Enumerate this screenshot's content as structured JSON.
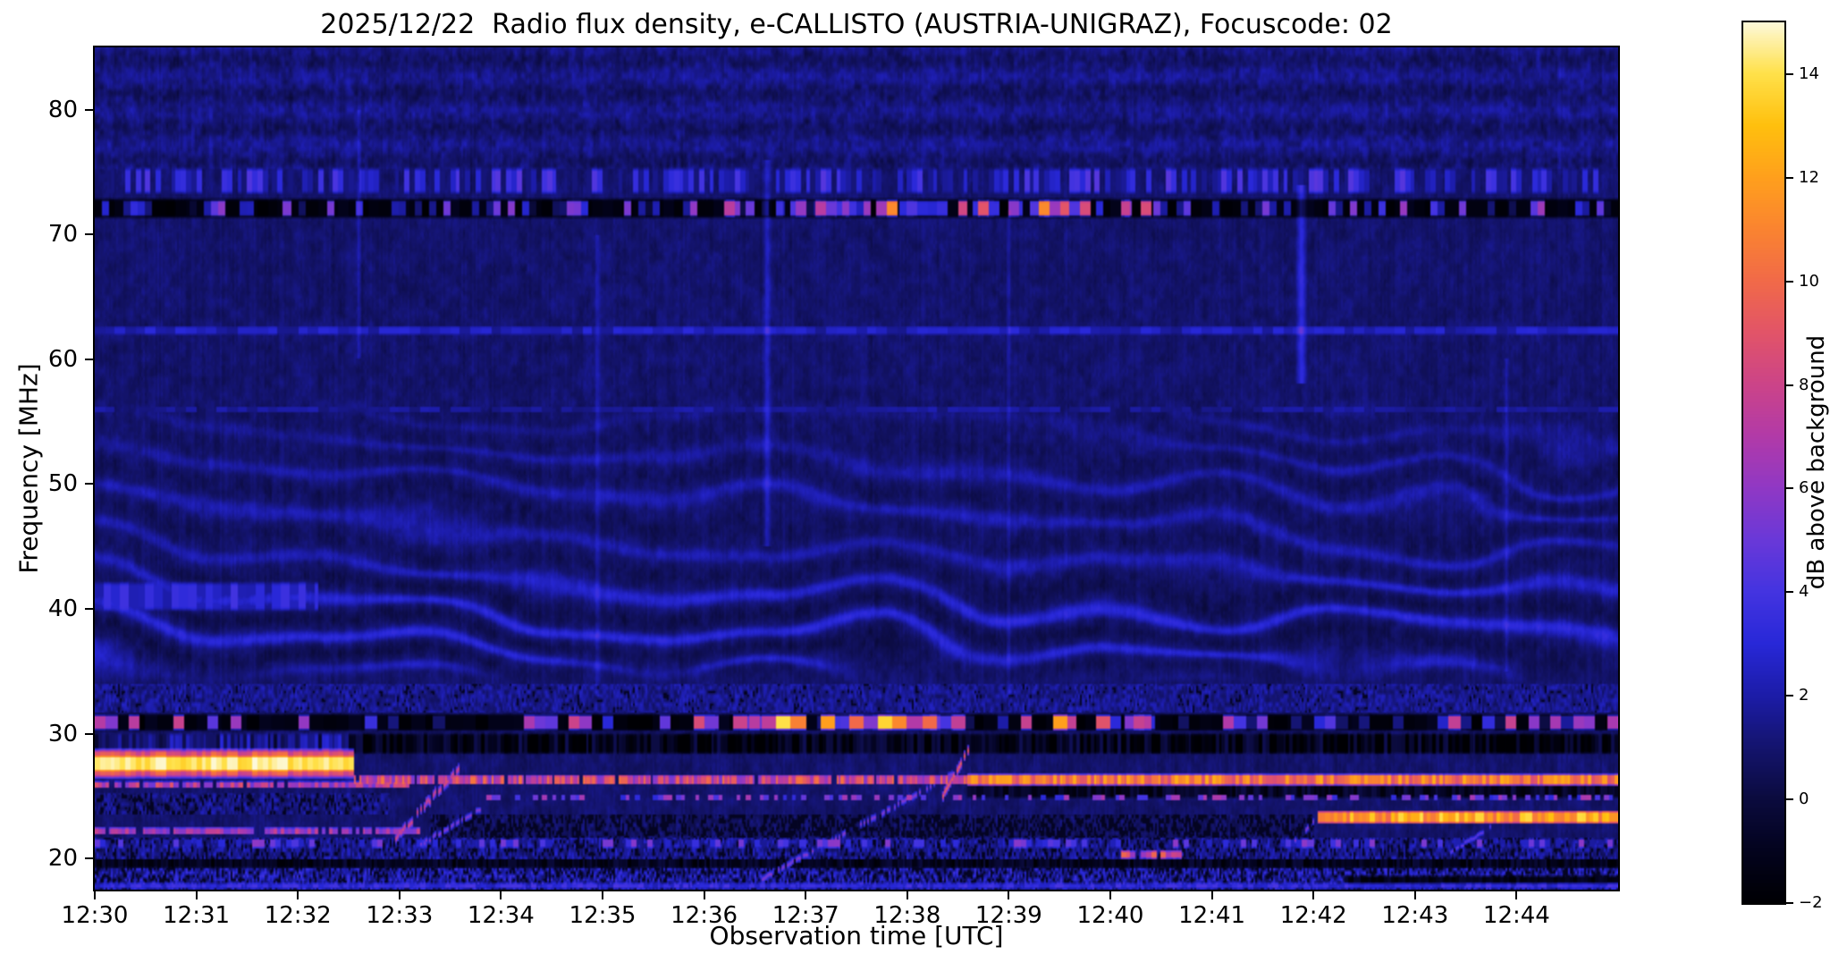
{
  "title": "2025/12/22  Radio flux density, e-CALLISTO (AUSTRIA-UNIGRAZ), Focuscode: 02",
  "chart_data": {
    "type": "heatmap",
    "title": "2025/12/22  Radio flux density, e-CALLISTO (AUSTRIA-UNIGRAZ), Focuscode: 02",
    "xlabel": "Observation time [UTC]",
    "ylabel": "Frequency [MHz]",
    "colorbar_label": "dB above background",
    "x_start": "12:30",
    "x_end": "12:45",
    "x_minutes_span": 15,
    "x_tick_labels": [
      "12:30",
      "12:31",
      "12:32",
      "12:33",
      "12:34",
      "12:35",
      "12:36",
      "12:37",
      "12:38",
      "12:39",
      "12:40",
      "12:41",
      "12:42",
      "12:43",
      "12:44"
    ],
    "y_ticks_mhz": [
      20,
      30,
      40,
      50,
      60,
      70,
      80
    ],
    "freq_range_mhz": [
      17.5,
      85.0
    ],
    "value_range_db": [
      -2,
      15
    ],
    "colorbar_tick_values": [
      -2,
      0,
      2,
      4,
      6,
      8,
      10,
      12,
      14
    ],
    "colorbar_tick_labels": [
      "−2",
      "0",
      "2",
      "4",
      "6",
      "8",
      "10",
      "12",
      "14"
    ],
    "grid": false,
    "legend_position": "right-colorbar",
    "colormap_stops": [
      {
        "v": -2,
        "color": "#000003"
      },
      {
        "v": -1,
        "color": "#03031e"
      },
      {
        "v": 0,
        "color": "#0b0b3e"
      },
      {
        "v": 1,
        "color": "#14146e"
      },
      {
        "v": 2,
        "color": "#1c1ca8"
      },
      {
        "v": 3,
        "color": "#2828d8"
      },
      {
        "v": 4,
        "color": "#4434e0"
      },
      {
        "v": 5,
        "color": "#6a38d8"
      },
      {
        "v": 6,
        "color": "#9038c4"
      },
      {
        "v": 7,
        "color": "#b23aa8"
      },
      {
        "v": 8,
        "color": "#cc4488"
      },
      {
        "v": 9,
        "color": "#e25468"
      },
      {
        "v": 10,
        "color": "#f16a48"
      },
      {
        "v": 11,
        "color": "#fa8430"
      },
      {
        "v": 12,
        "color": "#ffa01c"
      },
      {
        "v": 13,
        "color": "#ffc00e"
      },
      {
        "v": 14,
        "color": "#ffe14a"
      },
      {
        "v": 15,
        "color": "#fdf9dc"
      }
    ],
    "background": {
      "level": 0.35,
      "noise1": {
        "amp": 0.75,
        "sx": 14,
        "sy": 1.1
      },
      "noise2": {
        "amp": 0.45,
        "sx": 60,
        "sy": 3.2
      },
      "column_noise": {
        "amp": 0.5,
        "sx": 120
      }
    },
    "features": {
      "ripples": {
        "f0": 34,
        "f1": 57,
        "kf": 2.0,
        "warp": 1.4,
        "wsx": 0.9,
        "wsy": 0.18,
        "drift": 1.1,
        "base_amp": 0.3,
        "peaks": [
          {
            "f": 36.5,
            "a": 0.85,
            "w": 2.5
          },
          {
            "f": 40.2,
            "a": 1.25,
            "w": 3.5
          },
          {
            "f": 48.5,
            "a": 0.7,
            "w": 5.0
          }
        ]
      },
      "top_mottle": {
        "f0": 75.3,
        "f1": 85.0,
        "amp": 1.0,
        "sx": 28,
        "sy": 2.2,
        "row_amp": 0.35,
        "row_k": 2.3
      },
      "set_bands": [
        {
          "f": 30.9,
          "h": 1.5,
          "t0": 0,
          "t1": 15,
          "v": -1.5,
          "vr": 0.6,
          "seg": 8
        },
        {
          "f": 29.2,
          "h": 1.8,
          "t0": 2.5,
          "t1": 15,
          "v": -1.1,
          "vr": 1.6,
          "seg": 30
        },
        {
          "f": 29.2,
          "h": 1.8,
          "t0": 0,
          "t1": 2.5,
          "v": 1.2,
          "vr": 1.8,
          "seg": 30
        },
        {
          "f": 72.1,
          "h": 1.7,
          "t0": 0,
          "t1": 15,
          "v": -1.5,
          "vr": 0.5,
          "seg": 10
        },
        {
          "f": 19.6,
          "h": 0.8,
          "t0": 0,
          "t1": 15,
          "v": -1.0,
          "vr": 1.0,
          "seg": 40
        },
        {
          "f": 18.2,
          "h": 0.9,
          "t0": 12.3,
          "t1": 15,
          "v": -1.2,
          "vr": 0.8,
          "seg": 30
        },
        {
          "f": 25.4,
          "h": 1.2,
          "t0": 8.6,
          "t1": 15,
          "v": -0.8,
          "vr": 1.0,
          "seg": 35
        }
      ],
      "bright_bands": [
        {
          "f": 27.6,
          "h": 2.6,
          "t0": 0,
          "t1": 2.55,
          "v": 9.0,
          "vr": 1.5,
          "dash": 1,
          "seg": 20
        },
        {
          "f": 27.6,
          "h": 1.3,
          "t0": 0,
          "t1": 2.55,
          "v": 14.3,
          "vr": 0.8,
          "dash": 1,
          "seg": 20
        },
        {
          "f": 25.9,
          "h": 0.6,
          "t0": 0,
          "t1": 3.1,
          "v": 7.0,
          "vr": 2.0,
          "dash": 0.9,
          "seg": 30
        },
        {
          "f": 26.3,
          "h": 0.8,
          "t0": 2.55,
          "t1": 8.6,
          "v": 8.0,
          "vr": 2.5,
          "dash": 0.95,
          "seg": 40
        },
        {
          "f": 26.3,
          "h": 1.0,
          "t0": 8.6,
          "t1": 15,
          "v": 10.5,
          "vr": 2.0,
          "dash": 1,
          "seg": 30
        },
        {
          "f": 24.9,
          "h": 0.5,
          "t0": 3.2,
          "t1": 15,
          "v": 5.0,
          "vr": 2.0,
          "dash": 0.45,
          "seg": 22
        },
        {
          "f": 23.3,
          "h": 1.1,
          "t0": 12.05,
          "t1": 15,
          "v": 12.0,
          "vr": 2.0,
          "dash": 1,
          "seg": 25
        },
        {
          "f": 22.2,
          "h": 0.6,
          "t0": 0,
          "t1": 3.2,
          "v": 6.5,
          "vr": 1.5,
          "dash": 0.85,
          "seg": 30
        },
        {
          "f": 21.2,
          "h": 0.8,
          "t0": 0,
          "t1": 15,
          "v": 3.5,
          "vr": 2.5,
          "dash": 0.45,
          "seg": 18
        },
        {
          "f": 30.9,
          "h": 1.3,
          "t0": 0,
          "t1": 15,
          "v": 4.0,
          "vr": 4.0,
          "dash": 0.4,
          "seg": 9
        },
        {
          "f": 30.9,
          "h": 1.3,
          "t0": 5.9,
          "t1": 10.4,
          "v": 9.0,
          "vr": 5.0,
          "dash": 0.55,
          "seg": 7
        },
        {
          "f": 72.1,
          "h": 1.4,
          "t0": 0,
          "t1": 15,
          "v": 3.0,
          "vr": 3.5,
          "dash": 0.38,
          "seg": 14
        },
        {
          "f": 72.1,
          "h": 1.4,
          "t0": 6.1,
          "t1": 10.4,
          "v": 7.0,
          "vr": 5.0,
          "dash": 0.5,
          "seg": 10
        },
        {
          "f": 74.3,
          "h": 2.2,
          "t0": 0,
          "t1": 15,
          "v": 2.4,
          "vr": 2.2,
          "dash": 0.8,
          "seg": 20
        },
        {
          "f": 62.3,
          "h": 0.7,
          "t0": 0,
          "t1": 15,
          "v": 2.3,
          "vr": 0.8,
          "dash": 1,
          "seg": 10
        },
        {
          "f": 56.0,
          "h": 0.5,
          "t0": 0,
          "t1": 15,
          "v": 1.7,
          "vr": 0.5,
          "dash": 0.9,
          "seg": 10
        },
        {
          "f": 17.8,
          "h": 0.5,
          "t0": 0,
          "t1": 15,
          "v": 3.2,
          "vr": 1.0,
          "dash": 1,
          "seg": 20
        },
        {
          "f": 20.3,
          "h": 0.7,
          "t0": 10.1,
          "t1": 10.7,
          "v": 8.0,
          "vr": 2.0,
          "dash": 0.8,
          "seg": 20
        },
        {
          "f": 41.0,
          "h": 2.5,
          "t0": 0,
          "t1": 2.2,
          "v": 2.8,
          "vr": 1.2,
          "dash": 1,
          "seg": 12
        }
      ],
      "speckle_regions": [
        {
          "f0": 17.5,
          "f1": 20.0,
          "t0": 0,
          "t1": 15,
          "base": 0.3,
          "amp": 4.5,
          "sx": 85,
          "sy": 3.5,
          "black": 0.32
        },
        {
          "f0": 20.0,
          "f1": 21.6,
          "t0": 0,
          "t1": 15,
          "base": 0.3,
          "amp": 3.2,
          "sx": 70,
          "sy": 3.0,
          "black": 0.28
        },
        {
          "f0": 31.7,
          "f1": 34.0,
          "t0": 0,
          "t1": 15,
          "base": 0.6,
          "amp": 2.4,
          "sx": 55,
          "sy": 3.0,
          "black": 0.15
        },
        {
          "f0": 21.6,
          "f1": 23.5,
          "t0": 3.3,
          "t1": 12.0,
          "base": 0.0,
          "amp": 1.8,
          "sx": 60,
          "sy": 3.0,
          "black": 0.45
        },
        {
          "f0": 23.5,
          "f1": 25.3,
          "t0": 0,
          "t1": 2.9,
          "base": 0.3,
          "amp": 2.6,
          "sx": 60,
          "sy": 3.0,
          "black": 0.3
        }
      ],
      "drifting_bursts": [
        {
          "t0": 2.95,
          "f0": 21.5,
          "t1": 3.6,
          "f1": 27.3,
          "w": 0.45,
          "v": 8.5,
          "dot": 0.6,
          "jit": 0.6
        },
        {
          "t0": 3.2,
          "f0": 21.0,
          "t1": 3.8,
          "f1": 24.0,
          "w": 0.3,
          "v": 6.0,
          "dot": 0.5,
          "jit": 0.4
        },
        {
          "t0": 6.5,
          "f0": 18.0,
          "t1": 8.5,
          "f1": 27.0,
          "w": 0.33,
          "v": 6.0,
          "dot": 0.45,
          "jit": 0.3
        },
        {
          "t0": 8.35,
          "f0": 25.0,
          "t1": 8.62,
          "f1": 29.0,
          "w": 0.45,
          "v": 10.0,
          "dot": 0.65,
          "jit": 0.3
        },
        {
          "t0": 11.7,
          "f0": 20.5,
          "t1": 12.05,
          "f1": 23.3,
          "w": 0.3,
          "v": 6.0,
          "dot": 0.5,
          "jit": 0.3
        },
        {
          "t0": 13.35,
          "f0": 20.5,
          "t1": 13.75,
          "f1": 22.5,
          "w": 0.25,
          "v": 5.0,
          "dot": 0.5,
          "jit": 0.3
        }
      ],
      "vertical_streaks": [
        {
          "t": 6.62,
          "f0": 45,
          "f1": 76,
          "w": 0.05,
          "v": 1.8
        },
        {
          "t": 11.88,
          "f0": 58,
          "f1": 74,
          "w": 0.06,
          "v": 2.6
        },
        {
          "t": 4.95,
          "f0": 33,
          "f1": 70,
          "w": 0.035,
          "v": 1.2
        },
        {
          "t": 9.0,
          "f0": 33,
          "f1": 72,
          "w": 0.03,
          "v": 1.0
        },
        {
          "t": 2.6,
          "f0": 60,
          "f1": 80,
          "w": 0.03,
          "v": 1.2
        },
        {
          "t": 13.9,
          "f0": 35,
          "f1": 60,
          "w": 0.03,
          "v": 1.0
        }
      ]
    }
  }
}
